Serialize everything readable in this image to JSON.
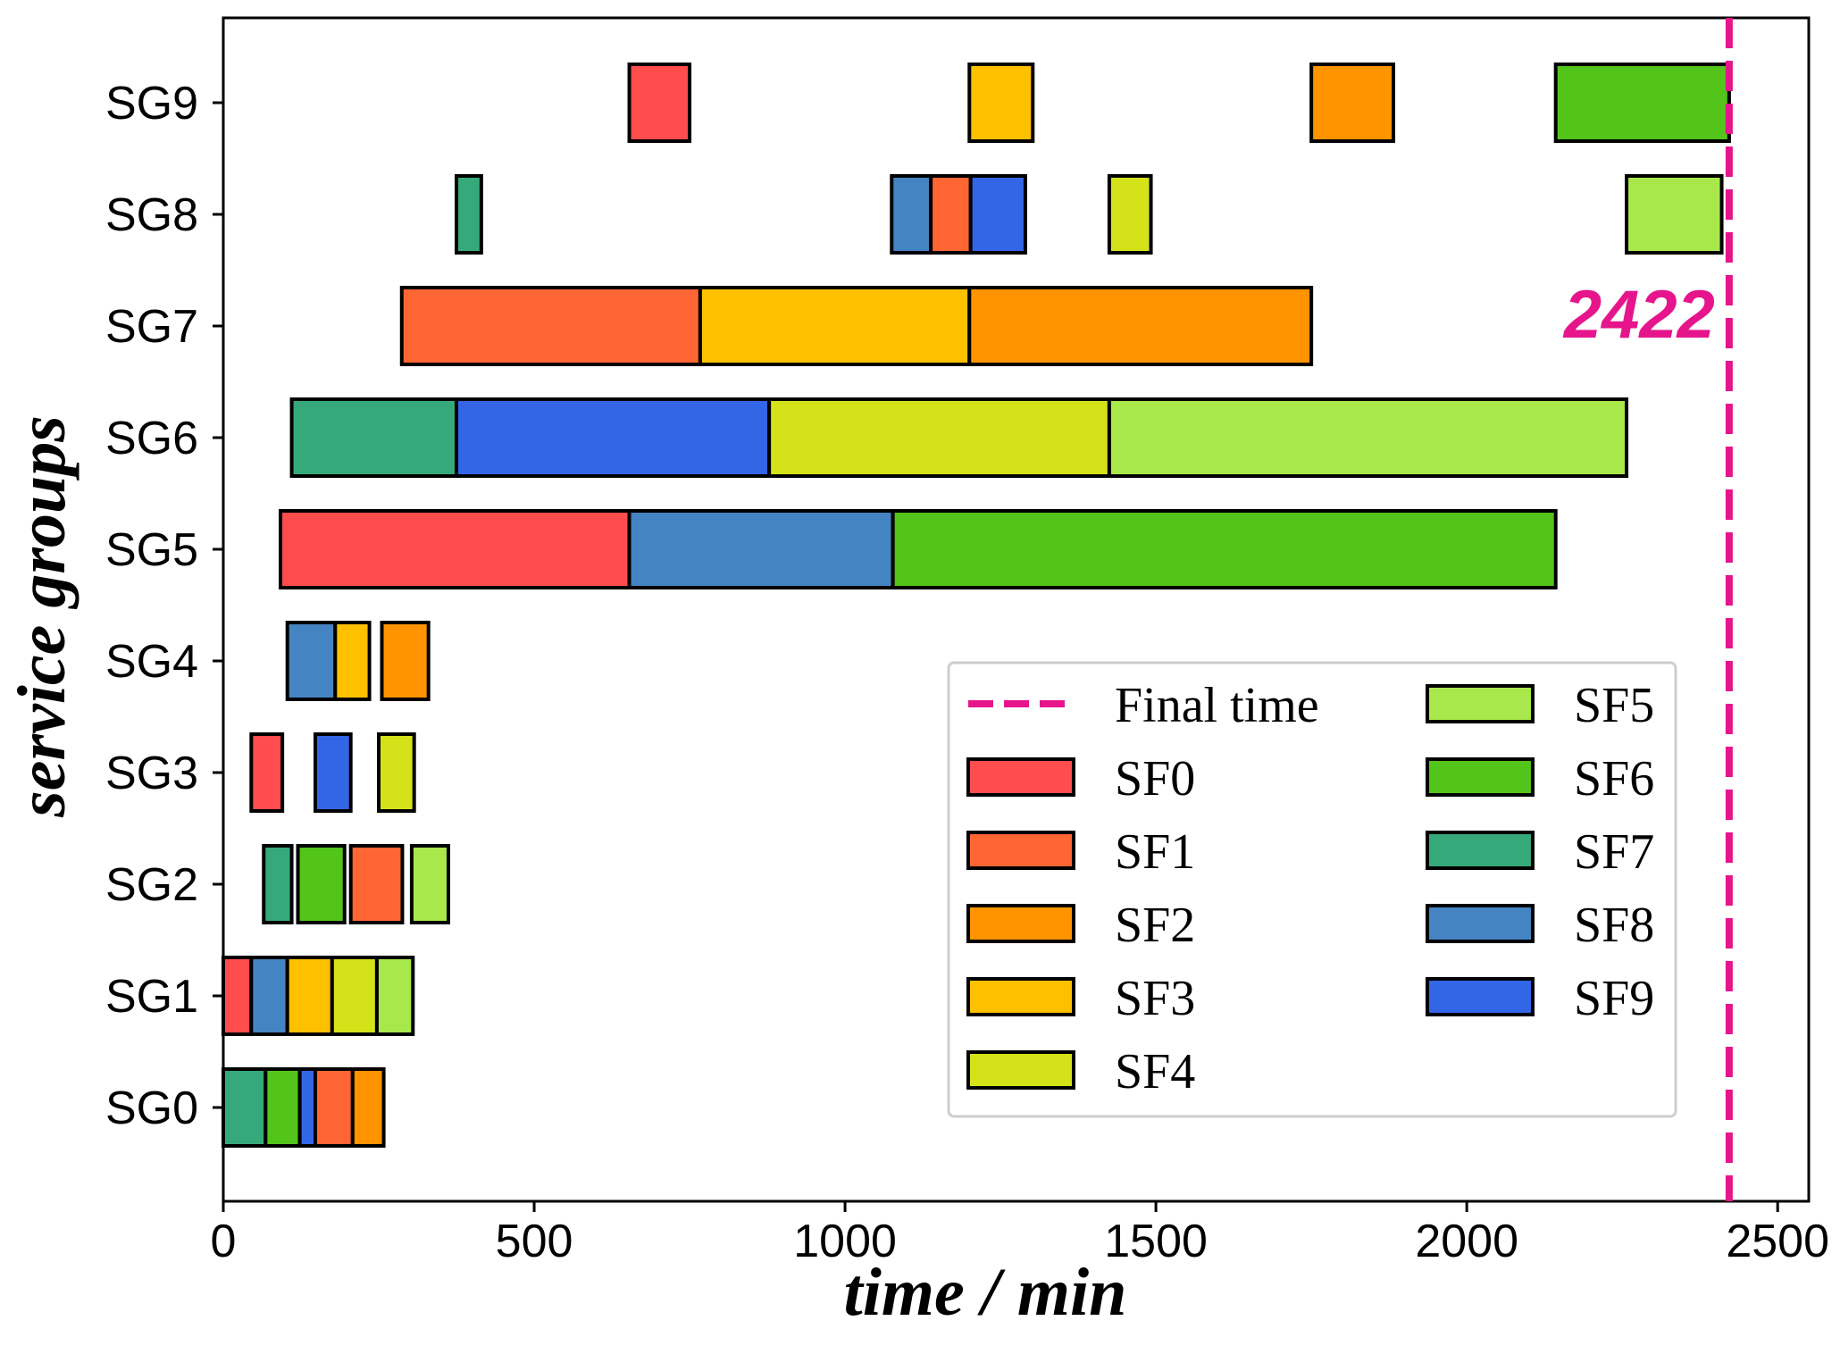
{
  "chart_data": {
    "type": "gantt",
    "xlabel": "time / min",
    "ylabel": "service groups",
    "xlim": [
      0,
      2550
    ],
    "xticks": [
      0,
      500,
      1000,
      1500,
      2000,
      2500
    ],
    "groups": [
      "SG0",
      "SG1",
      "SG2",
      "SG3",
      "SG4",
      "SG5",
      "SG6",
      "SG7",
      "SG8",
      "SG9"
    ],
    "final_time": 2422,
    "final_time_label": "2422",
    "final_time_color": "#e6158c",
    "legend_position": "lower-right",
    "legend": [
      {
        "name": "Final time",
        "kind": "line",
        "color": "#e6158c"
      },
      {
        "name": "SF0",
        "kind": "patch",
        "color": "#ff4d4d"
      },
      {
        "name": "SF1",
        "kind": "patch",
        "color": "#ff6633"
      },
      {
        "name": "SF2",
        "kind": "patch",
        "color": "#ff9400"
      },
      {
        "name": "SF3",
        "kind": "patch",
        "color": "#ffc000"
      },
      {
        "name": "SF4",
        "kind": "patch",
        "color": "#d4e21a"
      },
      {
        "name": "SF5",
        "kind": "patch",
        "color": "#a8e84a"
      },
      {
        "name": "SF6",
        "kind": "patch",
        "color": "#52c41a"
      },
      {
        "name": "SF7",
        "kind": "patch",
        "color": "#36a97a"
      },
      {
        "name": "SF8",
        "kind": "patch",
        "color": "#4584c2"
      },
      {
        "name": "SF9",
        "kind": "patch",
        "color": "#3366e6"
      }
    ],
    "tasks": [
      {
        "group": "SG0",
        "sf": "SF7",
        "start": 0,
        "end": 68
      },
      {
        "group": "SG0",
        "sf": "SF6",
        "start": 68,
        "end": 123
      },
      {
        "group": "SG0",
        "sf": "SF9",
        "start": 123,
        "end": 148
      },
      {
        "group": "SG0",
        "sf": "SF1",
        "start": 148,
        "end": 208
      },
      {
        "group": "SG0",
        "sf": "SF2",
        "start": 208,
        "end": 258
      },
      {
        "group": "SG1",
        "sf": "SF0",
        "start": 0,
        "end": 45
      },
      {
        "group": "SG1",
        "sf": "SF8",
        "start": 45,
        "end": 103
      },
      {
        "group": "SG1",
        "sf": "SF3",
        "start": 103,
        "end": 175
      },
      {
        "group": "SG1",
        "sf": "SF4",
        "start": 175,
        "end": 247
      },
      {
        "group": "SG1",
        "sf": "SF5",
        "start": 247,
        "end": 305
      },
      {
        "group": "SG2",
        "sf": "SF7",
        "start": 65,
        "end": 110
      },
      {
        "group": "SG2",
        "sf": "SF6",
        "start": 120,
        "end": 195
      },
      {
        "group": "SG2",
        "sf": "SF1",
        "start": 205,
        "end": 288
      },
      {
        "group": "SG2",
        "sf": "SF5",
        "start": 303,
        "end": 362
      },
      {
        "group": "SG3",
        "sf": "SF0",
        "start": 45,
        "end": 95
      },
      {
        "group": "SG3",
        "sf": "SF9",
        "start": 148,
        "end": 205
      },
      {
        "group": "SG3",
        "sf": "SF4",
        "start": 250,
        "end": 307
      },
      {
        "group": "SG4",
        "sf": "SF8",
        "start": 103,
        "end": 180
      },
      {
        "group": "SG4",
        "sf": "SF3",
        "start": 180,
        "end": 235
      },
      {
        "group": "SG4",
        "sf": "SF2",
        "start": 255,
        "end": 330
      },
      {
        "group": "SG5",
        "sf": "SF0",
        "start": 92,
        "end": 653
      },
      {
        "group": "SG5",
        "sf": "SF8",
        "start": 653,
        "end": 1077
      },
      {
        "group": "SG5",
        "sf": "SF6",
        "start": 1077,
        "end": 2143
      },
      {
        "group": "SG6",
        "sf": "SF7",
        "start": 110,
        "end": 375
      },
      {
        "group": "SG6",
        "sf": "SF9",
        "start": 375,
        "end": 878
      },
      {
        "group": "SG6",
        "sf": "SF4",
        "start": 878,
        "end": 1425
      },
      {
        "group": "SG6",
        "sf": "SF5",
        "start": 1425,
        "end": 2257
      },
      {
        "group": "SG7",
        "sf": "SF1",
        "start": 287,
        "end": 767
      },
      {
        "group": "SG7",
        "sf": "SF3",
        "start": 767,
        "end": 1200
      },
      {
        "group": "SG7",
        "sf": "SF2",
        "start": 1200,
        "end": 1750
      },
      {
        "group": "SG8",
        "sf": "SF7",
        "start": 375,
        "end": 415
      },
      {
        "group": "SG8",
        "sf": "SF8",
        "start": 1075,
        "end": 1138
      },
      {
        "group": "SG8",
        "sf": "SF1",
        "start": 1138,
        "end": 1202
      },
      {
        "group": "SG8",
        "sf": "SF9",
        "start": 1202,
        "end": 1290
      },
      {
        "group": "SG8",
        "sf": "SF4",
        "start": 1425,
        "end": 1492
      },
      {
        "group": "SG8",
        "sf": "SF5",
        "start": 2257,
        "end": 2410
      },
      {
        "group": "SG9",
        "sf": "SF0",
        "start": 653,
        "end": 750
      },
      {
        "group": "SG9",
        "sf": "SF3",
        "start": 1200,
        "end": 1302
      },
      {
        "group": "SG9",
        "sf": "SF2",
        "start": 1750,
        "end": 1882
      },
      {
        "group": "SG9",
        "sf": "SF6",
        "start": 2143,
        "end": 2422
      }
    ]
  }
}
